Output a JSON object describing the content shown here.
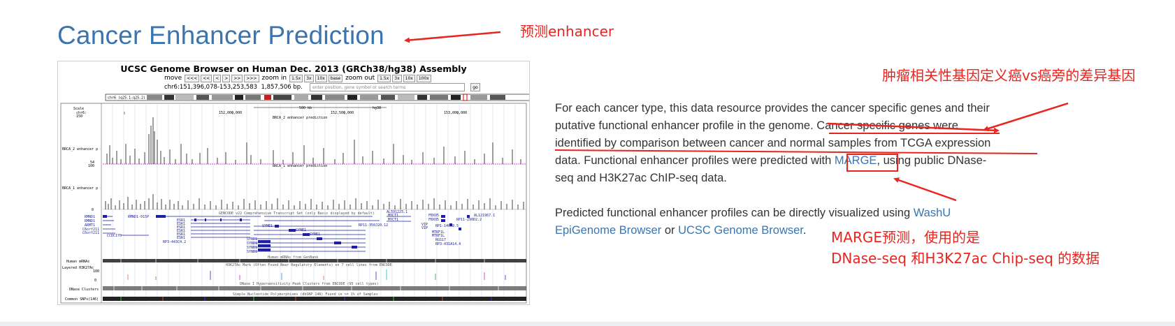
{
  "page": {
    "title": "Cancer Enhancer Prediction"
  },
  "annotations": {
    "title_note": "预测enhancer",
    "genes_note": "肿瘤相关性基因定义癌vs癌旁的差异基因",
    "marge_note_line1": "MARGE预测，使用的是",
    "marge_note_line2": "DNase-seq 和H3K27ac Chip-seq 的数据",
    "arrow_color": "#e8251f"
  },
  "description": {
    "p1_line1": "For each cancer type, this data resource provides the cancer specific genes and their",
    "p1_line2": "putative functional enhancer profile in the genome. Cancer specific genes were",
    "p1_line3": "identified by comparison between cancer and normal samples from TCGA expression",
    "p1_line4_a": "data. Functional enhancer profiles were predicted with ",
    "p1_line4_link": "MARGE",
    "p1_line4_b": ", using public DNase-",
    "p1_line5": "seq and H3K27ac ChIP-seq data.",
    "p2_line1_a": "Predicted functional enhancer profiles can be directly visualized using ",
    "p2_line1_link": "WashU",
    "p2_line2_link": "EpiGenome Browser",
    "p2_line2_mid": " or ",
    "p2_line2_link2": "UCSC Genome Browser",
    "p2_line2_end": ".",
    "link_color": "#3a75b0"
  },
  "genome_browser": {
    "title": "UCSC Genome Browser on Human Dec. 2013 (GRCh38/hg38) Assembly",
    "nav": {
      "move_label": "move",
      "move_buttons": [
        "<<<",
        "<<",
        "<",
        ">",
        ">>",
        ">>>"
      ],
      "zoom_in_label": "zoom in",
      "zoom_in_buttons": [
        "1.5x",
        "3x",
        "10x",
        "base"
      ],
      "zoom_out_label": "zoom out",
      "zoom_out_buttons": [
        "1.5x",
        "3x",
        "10x",
        "100x"
      ]
    },
    "position": "chr6:151,396,078-153,253,583",
    "size": "1,857,506 bp.",
    "search_placeholder": "enter position, gene symbol or search terms",
    "go_label": "go",
    "chromosome_label": "chr6 (q25.1-q25.2)",
    "ruler": {
      "scale": "Scale",
      "chr": "chr6:",
      "tick1": "152,000,000",
      "tick2": "152,500,000",
      "tick3": "153,000,000",
      "scale_bar": "500 kb",
      "assembly": "hg38"
    },
    "tracks": {
      "brca2_title": "BRCA_2 enhancer prediction",
      "brca1_title": "BRCA_1 enhancer prediction",
      "brca2_label": "BRCA_2 enhancer p",
      "brca1_label": "BRCA_1 enhancer p",
      "y_max": "150",
      "y_mid": "54",
      "y_max2": "100",
      "y_zero": "0",
      "gencode_title": "GENCODE v22 Comprehensive Transcript Set (only Basic displayed by default)",
      "mrna_title": "Human mRNAs from GenBank",
      "mrna_label": "Human mRNAs",
      "h3k27ac_title": "H3K27Ac Mark (Often Found Near Regulatory Elements) on 7 cell lines from ENCODE",
      "h3k27ac_label": "Layered H3K27Ac",
      "h3k27ac_max": "100",
      "h3k27ac_zero": "0",
      "dnase_title": "DNase I Hypersensitivity Peak Clusters from ENCODE (95 cell types)",
      "dnase_label": "DNase Clusters",
      "snp_title": "Simple Nucleotide Polymorphisms (dbSNP 146) Found in >= 1% of Samples",
      "snp_label": "Common SNPs(146)"
    },
    "genes": {
      "left": [
        "RMND1",
        "RMND1",
        "ARMT1",
        "CCDC170",
        "C6orf211",
        "C6orf211"
      ],
      "center": [
        "RMND1-015P",
        "ESR1",
        "ESR1",
        "ESR1",
        "ESR1",
        "ESR1",
        "ESR1",
        "RP3-443C4.2"
      ],
      "syne": [
        "SYNE1",
        "SYNE1",
        "SYNE1",
        "SYNE1",
        "SYNE1",
        "SYNE1",
        "SYNE1"
      ],
      "right": [
        "MYCT1",
        "MYCT1",
        "VIP",
        "VIP",
        "FBXO5",
        "FBXO5",
        "MTRF1L",
        "MTRF1L",
        "RGS17",
        "RP11-290D2.2",
        "RP1-140K8.5",
        "AL121967.1",
        "RP11-350J20.12",
        "AL591225.1",
        "RP3-431A14.4"
      ]
    }
  }
}
